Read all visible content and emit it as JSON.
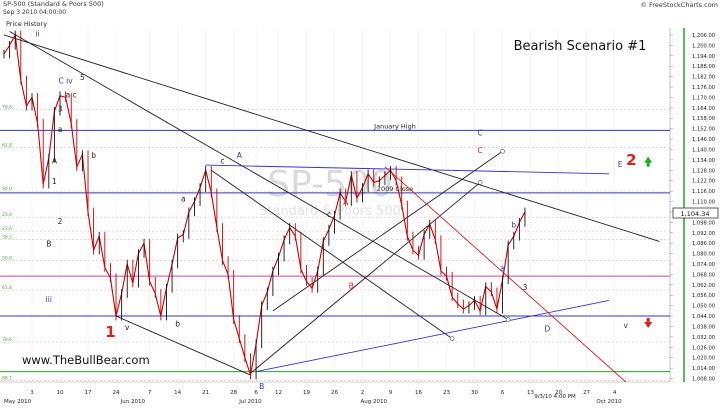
{
  "header": {
    "symbol_title": "SP-500 (Standard & Poors 500)",
    "timestamp": "Sep 3 2010 04:00:00",
    "source": "© FreeStockCharts.com",
    "price_history_label": "Price History"
  },
  "watermark": {
    "big": "SP-500",
    "small": "Standard & Poors 500"
  },
  "scenario_title": "Bearish Scenario #1",
  "website": "www.TheBullBear.com",
  "last_price_label": "1,104.34",
  "last_bar_date": "9/3/10 4:00 PM",
  "colors": {
    "background": "#ffffff",
    "price_line": "#cc0000",
    "blue_line": "#3333cc",
    "red_line": "#e02020",
    "black_line": "#222222",
    "green_arrow": "#22aa22",
    "red_arrow": "#dd1111",
    "axis_green": "#33aa33"
  },
  "chart_data": {
    "type": "line",
    "title": "SP-500 (Standard & Poors 500)",
    "y_axis": {
      "ylim": [
        1006,
        1210
      ],
      "ticks": [
        1206,
        1200,
        1194,
        1188,
        1182,
        1176,
        1170,
        1164,
        1158,
        1152,
        1146,
        1140,
        1134,
        1128,
        1122,
        1116,
        1110,
        1104,
        1098,
        1092,
        1086,
        1080,
        1074,
        1068,
        1062,
        1056,
        1050,
        1044,
        1038,
        1032,
        1026,
        1020,
        1014,
        1008
      ],
      "tick_labels": [
        "1,206.00",
        "1,200.00",
        "1,194.00",
        "1,188.00",
        "1,182.00",
        "1,176.00",
        "1,170.00",
        "1,164.00",
        "1,158.00",
        "1,152.00",
        "1,146.00",
        "1,140.00",
        "1,134.00",
        "1,128.00",
        "1,122.00",
        "1,116.00",
        "1,110.00",
        "1,104.00",
        "1,098.00",
        "1,092.00",
        "1,086.00",
        "1,080.00",
        "1,074.00",
        "1,068.00",
        "1,062.00",
        "1,056.00",
        "1,050.00",
        "1,044.00",
        "1,038.00",
        "1,032.00",
        "1,026.00",
        "1,020.00",
        "1,014.00",
        "1,008.00"
      ]
    },
    "x_axis": {
      "day_ticks": [
        {
          "t": 5,
          "label": "3"
        },
        {
          "t": 10,
          "label": "10"
        },
        {
          "t": 15,
          "label": "17"
        },
        {
          "t": 20,
          "label": "24"
        },
        {
          "t": 26,
          "label": "7"
        },
        {
          "t": 31,
          "label": "14"
        },
        {
          "t": 36,
          "label": "21"
        },
        {
          "t": 41,
          "label": "28"
        },
        {
          "t": 45,
          "label": "6"
        },
        {
          "t": 49,
          "label": "12"
        },
        {
          "t": 54,
          "label": "19"
        },
        {
          "t": 59,
          "label": "26"
        },
        {
          "t": 64,
          "label": "2"
        },
        {
          "t": 69,
          "label": "9"
        },
        {
          "t": 74,
          "label": "16"
        },
        {
          "t": 79,
          "label": "23"
        },
        {
          "t": 84,
          "label": "30"
        },
        {
          "t": 89,
          "label": "6"
        },
        {
          "t": 94,
          "label": "13"
        },
        {
          "t": 99,
          "label": "20"
        },
        {
          "t": 104,
          "label": "27"
        },
        {
          "t": 109,
          "label": "4"
        }
      ],
      "month_labels": [
        {
          "t": 0,
          "label": "May 2010"
        },
        {
          "t": 23,
          "label": "Jun 2010"
        },
        {
          "t": 44,
          "label": "Jul 2010"
        },
        {
          "t": 66,
          "label": "Aug 2010"
        },
        {
          "t": 108,
          "label": "Oct 2010"
        }
      ]
    },
    "price_series": {
      "name": "SP-500",
      "points": [
        [
          0,
          1195
        ],
        [
          1,
          1200
        ],
        [
          2,
          1206
        ],
        [
          3,
          1180
        ],
        [
          4,
          1165
        ],
        [
          5,
          1170
        ],
        [
          6,
          1155
        ],
        [
          7,
          1120
        ],
        [
          8,
          1135
        ],
        [
          9,
          1162
        ],
        [
          10,
          1171
        ],
        [
          11,
          1170
        ],
        [
          12,
          1155
        ],
        [
          13,
          1130
        ],
        [
          14,
          1137
        ],
        [
          15,
          1104
        ],
        [
          16,
          1082
        ],
        [
          17,
          1090
        ],
        [
          18,
          1072
        ],
        [
          19,
          1066
        ],
        [
          20,
          1044
        ],
        [
          21,
          1057
        ],
        [
          22,
          1074
        ],
        [
          23,
          1063
        ],
        [
          24,
          1080
        ],
        [
          25,
          1086
        ],
        [
          26,
          1064
        ],
        [
          27,
          1057
        ],
        [
          28,
          1044
        ],
        [
          29,
          1060
        ],
        [
          30,
          1074
        ],
        [
          31,
          1089
        ],
        [
          32,
          1091
        ],
        [
          33,
          1104
        ],
        [
          34,
          1110
        ],
        [
          35,
          1118
        ],
        [
          36,
          1128
        ],
        [
          37,
          1115
        ],
        [
          38,
          1095
        ],
        [
          39,
          1076
        ],
        [
          40,
          1068
        ],
        [
          41,
          1042
        ],
        [
          42,
          1031
        ],
        [
          43,
          1020
        ],
        [
          44,
          1010
        ],
        [
          45,
          1028
        ],
        [
          46,
          1050
        ],
        [
          47,
          1058
        ],
        [
          48,
          1070
        ],
        [
          49,
          1078
        ],
        [
          50,
          1088
        ],
        [
          51,
          1095
        ],
        [
          52,
          1090
        ],
        [
          53,
          1071
        ],
        [
          54,
          1064
        ],
        [
          55,
          1060
        ],
        [
          56,
          1070
        ],
        [
          57,
          1087
        ],
        [
          58,
          1094
        ],
        [
          59,
          1102
        ],
        [
          60,
          1115
        ],
        [
          61,
          1110
        ],
        [
          62,
          1125
        ],
        [
          63,
          1112
        ],
        [
          64,
          1118
        ],
        [
          65,
          1126
        ],
        [
          66,
          1121
        ],
        [
          67,
          1122
        ],
        [
          68,
          1125
        ],
        [
          69,
          1128
        ],
        [
          70,
          1122
        ],
        [
          71,
          1108
        ],
        [
          72,
          1090
        ],
        [
          73,
          1082
        ],
        [
          74,
          1079
        ],
        [
          75,
          1091
        ],
        [
          76,
          1097
        ],
        [
          77,
          1088
        ],
        [
          78,
          1070
        ],
        [
          79,
          1067
        ],
        [
          80,
          1055
        ],
        [
          81,
          1051
        ],
        [
          82,
          1048
        ],
        [
          83,
          1050
        ],
        [
          84,
          1053
        ],
        [
          85,
          1047
        ],
        [
          86,
          1061
        ],
        [
          87,
          1058
        ],
        [
          88,
          1048
        ],
        [
          89,
          1065
        ],
        [
          90,
          1085
        ],
        [
          91,
          1090
        ],
        [
          92,
          1098
        ],
        [
          93,
          1104
        ]
      ]
    },
    "fib_levels": [
      {
        "value": 1163,
        "label": "78.6"
      },
      {
        "value": 1141,
        "label": "61.8"
      },
      {
        "value": 1116,
        "label": "50.0"
      },
      {
        "value": 1101,
        "label": "23.6"
      },
      {
        "value": 1093,
        "label": "23.6"
      },
      {
        "value": 1088,
        "label": "38.2"
      },
      {
        "value": 1076,
        "label": "50.0"
      },
      {
        "value": 1059,
        "label": "61.8"
      },
      {
        "value": 1029,
        "label": "78.6"
      },
      {
        "value": 1007,
        "label": "88.1"
      }
    ],
    "horizontal_lines": [
      {
        "value": 1151,
        "label": "January High",
        "color": "blue"
      },
      {
        "value": 1115,
        "label": "2009 Close",
        "color": "blue"
      },
      {
        "value": 1044,
        "label": "",
        "color": "blue"
      },
      {
        "value": 1067,
        "label": "",
        "color": "magenta"
      },
      {
        "value": 1012,
        "label": "",
        "color": "green"
      }
    ],
    "trendlines": [
      {
        "from": [
          0,
          1206
        ],
        "to": [
          117,
          1087
        ],
        "color": "black"
      },
      {
        "from": [
          1,
          1208
        ],
        "to": [
          90,
          1042
        ],
        "color": "black"
      },
      {
        "from": [
          20,
          1044
        ],
        "to": [
          44,
          1010
        ],
        "color": "black"
      },
      {
        "from": [
          44,
          1011
        ],
        "to": [
          85,
          1121
        ],
        "color": "black"
      },
      {
        "from": [
          48,
          1047
        ],
        "to": [
          89,
          1139
        ],
        "color": "black"
      },
      {
        "from": [
          37,
          1128
        ],
        "to": [
          80,
          1031
        ],
        "color": "black"
      },
      {
        "from": [
          45,
          1012
        ],
        "to": [
          108,
          1053
        ],
        "color": "blue"
      },
      {
        "from": [
          36,
          1131
        ],
        "to": [
          108,
          1126
        ],
        "color": "blue"
      },
      {
        "from": [
          68,
          1130
        ],
        "to": [
          111,
          1006
        ],
        "color": "red"
      }
    ],
    "wave_labels": [
      {
        "t": 6,
        "v": 1205,
        "text": "ii",
        "color": "blue"
      },
      {
        "t": 11,
        "v": 1178,
        "text": "C iv",
        "color": "blue"
      },
      {
        "t": 14,
        "v": 1180,
        "text": "5",
        "color": "black"
      },
      {
        "t": 12,
        "v": 1170,
        "text": "a c",
        "color": "black"
      },
      {
        "t": 10,
        "v": 1162,
        "text": "3",
        "color": "black"
      },
      {
        "t": 10,
        "v": 1150,
        "text": "a",
        "color": "black"
      },
      {
        "t": 16,
        "v": 1135,
        "text": "b",
        "color": "black"
      },
      {
        "t": 9,
        "v": 1132,
        "text": "A",
        "color": "black"
      },
      {
        "t": 9,
        "v": 1120,
        "text": "1",
        "color": "black"
      },
      {
        "t": 10,
        "v": 1097,
        "text": "2",
        "color": "black"
      },
      {
        "t": 8,
        "v": 1084,
        "text": "B",
        "color": "black"
      },
      {
        "t": 8,
        "v": 1052,
        "text": "iii",
        "color": "blue"
      },
      {
        "t": 22,
        "v": 1036,
        "text": "v",
        "color": "black"
      },
      {
        "t": 32,
        "v": 1110,
        "text": "a",
        "color": "black"
      },
      {
        "t": 31,
        "v": 1038,
        "text": "b",
        "color": "black"
      },
      {
        "t": 39,
        "v": 1132,
        "text": "c",
        "color": "black"
      },
      {
        "t": 42,
        "v": 1135,
        "text": "A",
        "color": "blue"
      },
      {
        "t": 46,
        "v": 1002,
        "text": "B",
        "color": "blue"
      },
      {
        "t": 58,
        "v": 1101,
        "text": "c",
        "color": "black"
      },
      {
        "t": 61,
        "v": 1108,
        "text": "A",
        "color": "red"
      },
      {
        "t": 62,
        "v": 1060,
        "text": "B",
        "color": "red"
      },
      {
        "t": 85,
        "v": 1148,
        "text": "C",
        "color": "blue"
      },
      {
        "t": 85,
        "v": 1138,
        "text": "C",
        "color": "red"
      },
      {
        "t": 91,
        "v": 1095,
        "text": "b",
        "color": "blue"
      },
      {
        "t": 89,
        "v": 1070,
        "text": "a",
        "color": "blue"
      },
      {
        "t": 93,
        "v": 1059,
        "text": "3",
        "color": "black"
      },
      {
        "t": 97,
        "v": 1035,
        "text": "D",
        "color": "blue"
      },
      {
        "t": 110,
        "v": 1130,
        "text": "E",
        "color": "blue"
      },
      {
        "t": 111,
        "v": 1037,
        "text": "v",
        "color": "blue"
      }
    ],
    "wave_labels_big": [
      {
        "t": 19,
        "v": 1032,
        "text": "1",
        "color": "red"
      },
      {
        "t": 112,
        "v": 1131,
        "text": "2",
        "color": "red"
      }
    ],
    "arrows": [
      {
        "t": 115,
        "v": 1133,
        "direction": "up",
        "color": "green"
      },
      {
        "t": 115,
        "v": 1040,
        "direction": "down",
        "color": "red"
      }
    ]
  }
}
